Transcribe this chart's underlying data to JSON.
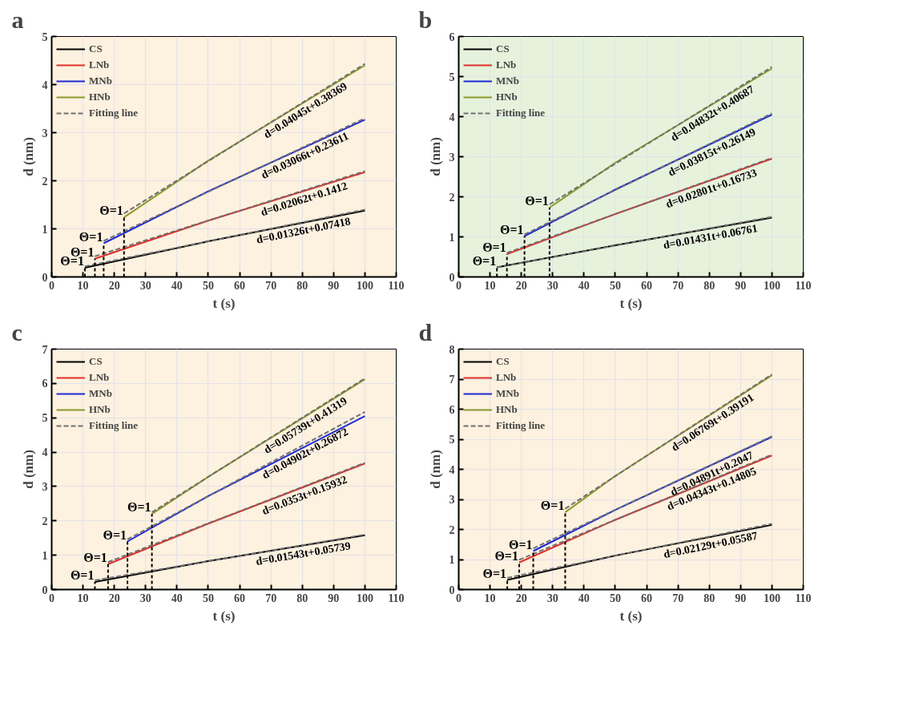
{
  "chart_data": [
    {
      "type": "line",
      "title": "a",
      "xlabel": "t (s)",
      "ylabel": "d (nm)",
      "xlim": [
        0,
        110
      ],
      "xticks": [
        0,
        10,
        20,
        30,
        40,
        50,
        60,
        70,
        80,
        90,
        100,
        110
      ],
      "ylim": [
        0,
        5
      ],
      "yticks": [
        0,
        1,
        2,
        3,
        4,
        5
      ],
      "grid": true,
      "legend": "top left",
      "line_style": "solid",
      "series": [
        {
          "name": "CS",
          "color": "#000000",
          "x": [
            10.6,
            50,
            100
          ],
          "values": [
            0.19,
            0.74,
            1.38
          ]
        },
        {
          "name": "LNb",
          "color": "#e0302a",
          "x": [
            13.8,
            50,
            100
          ],
          "values": [
            0.38,
            1.17,
            2.18
          ]
        },
        {
          "name": "MNb",
          "color": "#1f2ad6",
          "x": [
            16.6,
            50,
            100
          ],
          "values": [
            0.7,
            1.78,
            3.27
          ]
        },
        {
          "name": "HNb",
          "color": "#8a9a2a",
          "x": [
            23.1,
            50,
            100
          ],
          "values": [
            1.24,
            2.42,
            4.4
          ]
        },
        {
          "name": "Fitting line",
          "color": "#707070",
          "line_style": "dashed",
          "x": [
            10.6,
            100
          ],
          "values": [
            0.22,
            1.4
          ]
        },
        {
          "color": "#707070",
          "line_style": "dashed",
          "x": [
            13.8,
            100
          ],
          "values": [
            0.43,
            2.2
          ]
        },
        {
          "color": "#707070",
          "line_style": "dashed",
          "x": [
            16.6,
            100
          ],
          "values": [
            0.75,
            3.3
          ]
        },
        {
          "color": "#707070",
          "line_style": "dashed",
          "x": [
            23.1,
            100
          ],
          "values": [
            1.32,
            4.43
          ]
        }
      ],
      "annotations": [
        {
          "text": "Θ=1",
          "x": 10.6,
          "y": 0.19
        },
        {
          "text": "Θ=1",
          "x": 13.8,
          "y": 0.38
        },
        {
          "text": "Θ=1",
          "x": 16.6,
          "y": 0.7
        },
        {
          "text": "Θ=1",
          "x": 23.1,
          "y": 1.24
        },
        {
          "text": "d=0.01326t+0.07418",
          "x": 80,
          "y": 1.14
        },
        {
          "text": "d=0.02062t+0.1412",
          "x": 80,
          "y": 1.79
        },
        {
          "text": "d=0.03066t+0.23611",
          "x": 80,
          "y": 2.69
        },
        {
          "text": "d=0.04045t+0.38369",
          "x": 80,
          "y": 3.62
        }
      ]
    },
    {
      "type": "line",
      "title": "b",
      "xlabel": "t (s)",
      "ylabel": "d (nm)",
      "xlim": [
        0,
        110
      ],
      "xticks": [
        0,
        10,
        20,
        30,
        40,
        50,
        60,
        70,
        80,
        90,
        100,
        110
      ],
      "ylim": [
        0,
        6
      ],
      "yticks": [
        0,
        1,
        2,
        3,
        4,
        5,
        6
      ],
      "grid": true,
      "legend": "top left",
      "line_style": "solid",
      "series": [
        {
          "name": "CS",
          "color": "#000000",
          "x": [
            12.2,
            50,
            100
          ],
          "values": [
            0.24,
            0.79,
            1.48
          ]
        },
        {
          "name": "LNb",
          "color": "#e0302a",
          "x": [
            15.4,
            50,
            100
          ],
          "values": [
            0.57,
            1.57,
            2.95
          ]
        },
        {
          "name": "MNb",
          "color": "#1f2ad6",
          "x": [
            21,
            50,
            100
          ],
          "values": [
            1.02,
            2.18,
            4.05
          ]
        },
        {
          "name": "HNb",
          "color": "#8a9a2a",
          "x": [
            29,
            50,
            100
          ],
          "values": [
            1.73,
            2.85,
            5.2
          ]
        },
        {
          "name": "Fitting line",
          "color": "#707070",
          "line_style": "dashed",
          "x": [
            12.2,
            100
          ],
          "values": [
            0.24,
            1.5
          ]
        },
        {
          "color": "#707070",
          "line_style": "dashed",
          "x": [
            15.4,
            100
          ],
          "values": [
            0.6,
            2.97
          ]
        },
        {
          "color": "#707070",
          "line_style": "dashed",
          "x": [
            21,
            100
          ],
          "values": [
            1.06,
            4.08
          ]
        },
        {
          "color": "#707070",
          "line_style": "dashed",
          "x": [
            29,
            100
          ],
          "values": [
            1.81,
            5.24
          ]
        }
      ],
      "annotations": [
        {
          "text": "Θ=1",
          "x": 12.2,
          "y": 0.24
        },
        {
          "text": "Θ=1",
          "x": 15.4,
          "y": 0.57
        },
        {
          "text": "Θ=1",
          "x": 21,
          "y": 1.02
        },
        {
          "text": "Θ=1",
          "x": 29,
          "y": 1.73
        },
        {
          "text": "d=0.01431t+0.06761",
          "x": 80,
          "y": 1.21
        },
        {
          "text": "d=0.02801t+0.16733",
          "x": 80,
          "y": 2.41
        },
        {
          "text": "d=0.03815t+0.26149",
          "x": 80,
          "y": 3.31
        },
        {
          "text": "d=0.04832t+0.40687",
          "x": 80,
          "y": 4.27
        }
      ]
    },
    {
      "type": "line",
      "title": "c",
      "xlabel": "t (s)",
      "ylabel": "d (nm)",
      "xlim": [
        0,
        110
      ],
      "xticks": [
        0,
        10,
        20,
        30,
        40,
        50,
        60,
        70,
        80,
        90,
        100,
        110
      ],
      "ylim": [
        0,
        7
      ],
      "yticks": [
        0,
        1,
        2,
        3,
        4,
        5,
        6,
        7
      ],
      "grid": true,
      "legend": "top left",
      "line_style": "solid",
      "series": [
        {
          "name": "CS",
          "color": "#000000",
          "x": [
            13.8,
            50,
            100
          ],
          "values": [
            0.22,
            0.83,
            1.58
          ]
        },
        {
          "name": "LNb",
          "color": "#e0302a",
          "x": [
            18,
            50,
            100
          ],
          "values": [
            0.74,
            1.92,
            3.67
          ]
        },
        {
          "name": "MNb",
          "color": "#1f2ad6",
          "x": [
            24.2,
            50,
            100
          ],
          "values": [
            1.4,
            2.72,
            5.05
          ]
        },
        {
          "name": "HNb",
          "color": "#8a9a2a",
          "x": [
            32,
            50,
            100
          ],
          "values": [
            2.2,
            3.28,
            6.12
          ]
        },
        {
          "name": "Fitting line",
          "color": "#707070",
          "line_style": "dashed",
          "x": [
            13.8,
            100
          ],
          "values": [
            0.27,
            1.6
          ]
        },
        {
          "color": "#707070",
          "line_style": "dashed",
          "x": [
            18,
            100
          ],
          "values": [
            0.8,
            3.69
          ]
        },
        {
          "color": "#707070",
          "line_style": "dashed",
          "x": [
            24.2,
            100
          ],
          "values": [
            1.46,
            5.17
          ]
        },
        {
          "color": "#707070",
          "line_style": "dashed",
          "x": [
            32,
            100
          ],
          "values": [
            2.25,
            6.15
          ]
        }
      ],
      "annotations": [
        {
          "text": "Θ=1",
          "x": 13.8,
          "y": 0.22
        },
        {
          "text": "Θ=1",
          "x": 18,
          "y": 0.74
        },
        {
          "text": "Θ=1",
          "x": 24.2,
          "y": 1.4
        },
        {
          "text": "Θ=1",
          "x": 32,
          "y": 2.2
        },
        {
          "text": "d=0.01543t+0.05739",
          "x": 80,
          "y": 1.29
        },
        {
          "text": "d=0.0353t+0.15932",
          "x": 80,
          "y": 2.98
        },
        {
          "text": "d=0.04902t+0.26872",
          "x": 80,
          "y": 4.19
        },
        {
          "text": "d=0.05739t+0.41319",
          "x": 80,
          "y": 5.0
        }
      ]
    },
    {
      "type": "line",
      "title": "d",
      "xlabel": "t (s)",
      "ylabel": "d (nm)",
      "xlim": [
        0,
        110
      ],
      "xticks": [
        0,
        10,
        20,
        30,
        40,
        50,
        60,
        70,
        80,
        90,
        100,
        110
      ],
      "ylim": [
        0,
        8
      ],
      "yticks": [
        0,
        1,
        2,
        3,
        4,
        5,
        6,
        7,
        8
      ],
      "grid": true,
      "legend": "top left",
      "line_style": "solid",
      "series": [
        {
          "name": "CS",
          "color": "#000000",
          "x": [
            15.5,
            50,
            100
          ],
          "values": [
            0.32,
            1.13,
            2.15
          ]
        },
        {
          "name": "LNb",
          "color": "#e0302a",
          "x": [
            19.3,
            50,
            100
          ],
          "values": [
            0.9,
            2.32,
            4.46
          ]
        },
        {
          "name": "MNb",
          "color": "#1f2ad6",
          "x": [
            23.8,
            50,
            100
          ],
          "values": [
            1.28,
            2.65,
            5.08
          ]
        },
        {
          "name": "HNb",
          "color": "#8a9a2a",
          "x": [
            34,
            50,
            100
          ],
          "values": [
            2.57,
            3.78,
            7.13
          ]
        },
        {
          "name": "Fitting line",
          "color": "#707070",
          "line_style": "dashed",
          "x": [
            15.5,
            100
          ],
          "values": [
            0.39,
            2.19
          ]
        },
        {
          "color": "#707070",
          "line_style": "dashed",
          "x": [
            19.3,
            100
          ],
          "values": [
            0.99,
            4.49
          ]
        },
        {
          "color": "#707070",
          "line_style": "dashed",
          "x": [
            23.8,
            100
          ],
          "values": [
            1.37,
            5.1
          ]
        },
        {
          "color": "#707070",
          "line_style": "dashed",
          "x": [
            34,
            100
          ],
          "values": [
            2.69,
            7.16
          ]
        }
      ],
      "annotations": [
        {
          "text": "Θ=1",
          "x": 15.5,
          "y": 0.32
        },
        {
          "text": "Θ=1",
          "x": 19.3,
          "y": 0.9
        },
        {
          "text": "Θ=1",
          "x": 23.8,
          "y": 1.28
        },
        {
          "text": "Θ=1",
          "x": 34,
          "y": 2.57
        },
        {
          "text": "d=0.02129t+0.05587",
          "x": 80,
          "y": 1.76
        },
        {
          "text": "d=0.04343t+0.14805",
          "x": 80,
          "y": 3.62
        },
        {
          "text": "d=0.04891t+0.2047",
          "x": 80,
          "y": 4.12
        },
        {
          "text": "d=0.06769t+0.39191",
          "x": 80,
          "y": 5.81
        }
      ]
    }
  ]
}
